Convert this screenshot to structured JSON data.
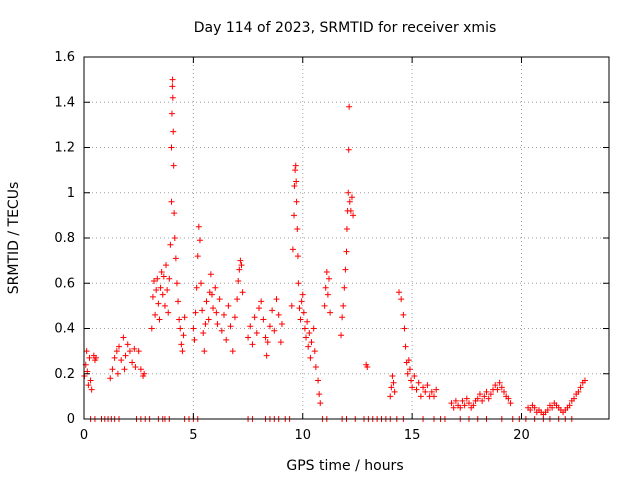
{
  "chart_data": {
    "type": "scatter",
    "title": "Day 114 of 2023, SRMTID for receiver xmis",
    "xlabel": "GPS time / hours",
    "ylabel": "SRMTID / TECUs",
    "xlim": [
      0,
      24
    ],
    "ylim": [
      0,
      1.6
    ],
    "xticks": [
      0,
      5,
      10,
      15,
      20
    ],
    "xtick_labels": [
      "0",
      "5",
      "10",
      "15",
      "20"
    ],
    "yticks": [
      0,
      0.2,
      0.4,
      0.6,
      0.8,
      1.0,
      1.2,
      1.4,
      1.6
    ],
    "ytick_labels": [
      "0",
      "0.2",
      "0.4",
      "0.6",
      "0.8",
      "1",
      "1.2",
      "1.4",
      "1.6"
    ],
    "grid": true,
    "marker": "+",
    "color": "#ff0000",
    "series": [
      {
        "name": "SRMTID",
        "points": [
          [
            0.02,
            0.19
          ],
          [
            0.08,
            0.24
          ],
          [
            0.12,
            0.3
          ],
          [
            0.15,
            0.21
          ],
          [
            0.2,
            0.15
          ],
          [
            0.25,
            0.27
          ],
          [
            0.3,
            0.17
          ],
          [
            0.35,
            0.13
          ],
          [
            0.45,
            0.28
          ],
          [
            0.5,
            0.26
          ],
          [
            0.55,
            0.27
          ],
          [
            1.2,
            0.18
          ],
          [
            1.3,
            0.22
          ],
          [
            1.4,
            0.27
          ],
          [
            1.5,
            0.3
          ],
          [
            1.55,
            0.2
          ],
          [
            1.6,
            0.32
          ],
          [
            1.7,
            0.26
          ],
          [
            1.8,
            0.36
          ],
          [
            1.85,
            0.22
          ],
          [
            1.9,
            0.28
          ],
          [
            2.0,
            0.33
          ],
          [
            2.1,
            0.3
          ],
          [
            2.2,
            0.25
          ],
          [
            2.3,
            0.31
          ],
          [
            2.35,
            0.23
          ],
          [
            2.5,
            0.3
          ],
          [
            2.6,
            0.22
          ],
          [
            2.7,
            0.19
          ],
          [
            2.75,
            0.2
          ],
          [
            3.1,
            0.4
          ],
          [
            3.15,
            0.54
          ],
          [
            3.2,
            0.61
          ],
          [
            3.25,
            0.46
          ],
          [
            3.3,
            0.57
          ],
          [
            3.35,
            0.62
          ],
          [
            3.4,
            0.51
          ],
          [
            3.45,
            0.44
          ],
          [
            3.5,
            0.58
          ],
          [
            3.55,
            0.65
          ],
          [
            3.6,
            0.55
          ],
          [
            3.65,
            0.63
          ],
          [
            3.7,
            0.5
          ],
          [
            3.75,
            0.68
          ],
          [
            3.8,
            0.57
          ],
          [
            3.85,
            0.47
          ],
          [
            3.9,
            0.62
          ],
          [
            3.95,
            0.77
          ],
          [
            4.0,
            0.96
          ],
          [
            4.0,
            1.2
          ],
          [
            4.02,
            1.35
          ],
          [
            4.04,
            1.47
          ],
          [
            4.05,
            1.5
          ],
          [
            4.06,
            1.42
          ],
          [
            4.08,
            1.27
          ],
          [
            4.1,
            1.12
          ],
          [
            4.12,
            0.91
          ],
          [
            4.15,
            0.8
          ],
          [
            4.2,
            0.71
          ],
          [
            4.25,
            0.6
          ],
          [
            4.3,
            0.52
          ],
          [
            4.35,
            0.44
          ],
          [
            4.4,
            0.4
          ],
          [
            4.45,
            0.33
          ],
          [
            4.5,
            0.3
          ],
          [
            4.55,
            0.37
          ],
          [
            4.6,
            0.45
          ],
          [
            5.0,
            0.4
          ],
          [
            5.05,
            0.35
          ],
          [
            5.1,
            0.47
          ],
          [
            5.15,
            0.58
          ],
          [
            5.2,
            0.72
          ],
          [
            5.25,
            0.85
          ],
          [
            5.3,
            0.79
          ],
          [
            5.35,
            0.6
          ],
          [
            5.4,
            0.48
          ],
          [
            5.45,
            0.38
          ],
          [
            5.5,
            0.3
          ],
          [
            5.55,
            0.42
          ],
          [
            5.6,
            0.52
          ],
          [
            5.7,
            0.44
          ],
          [
            5.75,
            0.56
          ],
          [
            5.8,
            0.64
          ],
          [
            5.85,
            0.55
          ],
          [
            5.9,
            0.49
          ],
          [
            6.0,
            0.58
          ],
          [
            6.05,
            0.47
          ],
          [
            6.1,
            0.42
          ],
          [
            6.2,
            0.53
          ],
          [
            6.3,
            0.39
          ],
          [
            6.4,
            0.46
          ],
          [
            6.5,
            0.35
          ],
          [
            6.6,
            0.5
          ],
          [
            6.7,
            0.41
          ],
          [
            6.8,
            0.3
          ],
          [
            6.9,
            0.45
          ],
          [
            7.0,
            0.53
          ],
          [
            7.05,
            0.61
          ],
          [
            7.1,
            0.66
          ],
          [
            7.15,
            0.7
          ],
          [
            7.2,
            0.68
          ],
          [
            7.25,
            0.56
          ],
          [
            7.5,
            0.36
          ],
          [
            7.6,
            0.41
          ],
          [
            7.7,
            0.33
          ],
          [
            7.8,
            0.45
          ],
          [
            7.9,
            0.38
          ],
          [
            8.0,
            0.49
          ],
          [
            8.1,
            0.52
          ],
          [
            8.2,
            0.44
          ],
          [
            8.3,
            0.36
          ],
          [
            8.35,
            0.28
          ],
          [
            8.4,
            0.34
          ],
          [
            8.5,
            0.41
          ],
          [
            8.6,
            0.48
          ],
          [
            8.7,
            0.39
          ],
          [
            8.8,
            0.53
          ],
          [
            8.9,
            0.46
          ],
          [
            9.0,
            0.34
          ],
          [
            9.05,
            0.42
          ],
          [
            9.5,
            0.5
          ],
          [
            9.55,
            0.75
          ],
          [
            9.6,
            0.9
          ],
          [
            9.62,
            1.03
          ],
          [
            9.65,
            1.1
          ],
          [
            9.68,
            1.12
          ],
          [
            9.7,
            1.05
          ],
          [
            9.72,
            0.96
          ],
          [
            9.75,
            0.84
          ],
          [
            9.78,
            0.72
          ],
          [
            9.8,
            0.6
          ],
          [
            9.85,
            0.49
          ],
          [
            9.9,
            0.44
          ],
          [
            9.95,
            0.52
          ],
          [
            10.0,
            0.55
          ],
          [
            10.05,
            0.47
          ],
          [
            10.1,
            0.4
          ],
          [
            10.15,
            0.36
          ],
          [
            10.2,
            0.43
          ],
          [
            10.25,
            0.32
          ],
          [
            10.3,
            0.38
          ],
          [
            10.35,
            0.27
          ],
          [
            10.4,
            0.34
          ],
          [
            10.5,
            0.4
          ],
          [
            10.55,
            0.3
          ],
          [
            10.6,
            0.23
          ],
          [
            10.7,
            0.17
          ],
          [
            10.75,
            0.11
          ],
          [
            10.8,
            0.07
          ],
          [
            11.0,
            0.5
          ],
          [
            11.05,
            0.58
          ],
          [
            11.1,
            0.65
          ],
          [
            11.15,
            0.55
          ],
          [
            11.2,
            0.62
          ],
          [
            11.25,
            0.47
          ],
          [
            11.75,
            0.37
          ],
          [
            11.8,
            0.45
          ],
          [
            11.85,
            0.5
          ],
          [
            11.9,
            0.58
          ],
          [
            11.95,
            0.66
          ],
          [
            12.0,
            0.74
          ],
          [
            12.02,
            0.84
          ],
          [
            12.05,
            0.92
          ],
          [
            12.08,
            1.0
          ],
          [
            12.1,
            1.19
          ],
          [
            12.12,
            1.38
          ],
          [
            12.15,
            0.96
          ],
          [
            12.2,
            0.92
          ],
          [
            12.25,
            0.98
          ],
          [
            12.3,
            0.9
          ],
          [
            12.9,
            0.24
          ],
          [
            12.95,
            0.23
          ],
          [
            14.0,
            0.1
          ],
          [
            14.05,
            0.14
          ],
          [
            14.1,
            0.19
          ],
          [
            14.15,
            0.16
          ],
          [
            14.2,
            0.12
          ],
          [
            14.4,
            0.56
          ],
          [
            14.5,
            0.53
          ],
          [
            14.6,
            0.46
          ],
          [
            14.65,
            0.4
          ],
          [
            14.7,
            0.32
          ],
          [
            14.75,
            0.25
          ],
          [
            14.8,
            0.2
          ],
          [
            14.85,
            0.26
          ],
          [
            14.9,
            0.22
          ],
          [
            14.95,
            0.17
          ],
          [
            15.0,
            0.14
          ],
          [
            15.1,
            0.19
          ],
          [
            15.2,
            0.13
          ],
          [
            15.3,
            0.16
          ],
          [
            15.4,
            0.1
          ],
          [
            15.5,
            0.14
          ],
          [
            15.6,
            0.12
          ],
          [
            15.7,
            0.15
          ],
          [
            15.8,
            0.1
          ],
          [
            15.9,
            0.12
          ],
          [
            16.0,
            0.1
          ],
          [
            16.1,
            0.13
          ],
          [
            16.8,
            0.07
          ],
          [
            16.9,
            0.05
          ],
          [
            17.0,
            0.08
          ],
          [
            17.1,
            0.06
          ],
          [
            17.2,
            0.05
          ],
          [
            17.3,
            0.08
          ],
          [
            17.4,
            0.06
          ],
          [
            17.5,
            0.09
          ],
          [
            17.6,
            0.07
          ],
          [
            17.7,
            0.05
          ],
          [
            17.8,
            0.06
          ],
          [
            17.9,
            0.08
          ],
          [
            18.0,
            0.09
          ],
          [
            18.1,
            0.11
          ],
          [
            18.2,
            0.08
          ],
          [
            18.3,
            0.1
          ],
          [
            18.4,
            0.12
          ],
          [
            18.5,
            0.09
          ],
          [
            18.6,
            0.11
          ],
          [
            18.7,
            0.13
          ],
          [
            18.8,
            0.15
          ],
          [
            18.9,
            0.13
          ],
          [
            19.0,
            0.16
          ],
          [
            19.1,
            0.14
          ],
          [
            19.2,
            0.12
          ],
          [
            19.3,
            0.1
          ],
          [
            19.4,
            0.09
          ],
          [
            19.5,
            0.07
          ],
          [
            20.3,
            0.05
          ],
          [
            20.4,
            0.04
          ],
          [
            20.5,
            0.06
          ],
          [
            20.6,
            0.05
          ],
          [
            20.7,
            0.03
          ],
          [
            20.8,
            0.04
          ],
          [
            20.9,
            0.03
          ],
          [
            21.0,
            0.02
          ],
          [
            21.1,
            0.03
          ],
          [
            21.2,
            0.04
          ],
          [
            21.3,
            0.06
          ],
          [
            21.4,
            0.05
          ],
          [
            21.5,
            0.07
          ],
          [
            21.6,
            0.06
          ],
          [
            21.7,
            0.05
          ],
          [
            21.8,
            0.04
          ],
          [
            21.9,
            0.03
          ],
          [
            22.0,
            0.04
          ],
          [
            22.1,
            0.05
          ],
          [
            22.2,
            0.06
          ],
          [
            22.3,
            0.08
          ],
          [
            22.4,
            0.09
          ],
          [
            22.5,
            0.11
          ],
          [
            22.6,
            0.12
          ],
          [
            22.7,
            0.14
          ],
          [
            22.8,
            0.16
          ],
          [
            22.9,
            0.17
          ],
          [
            0.3,
            0.0
          ],
          [
            0.5,
            0.0
          ],
          [
            0.8,
            0.0
          ],
          [
            0.95,
            0.0
          ],
          [
            1.1,
            0.0
          ],
          [
            1.25,
            0.0
          ],
          [
            1.4,
            0.0
          ],
          [
            1.6,
            0.0
          ],
          [
            2.4,
            0.0
          ],
          [
            2.6,
            0.0
          ],
          [
            2.8,
            0.0
          ],
          [
            3.0,
            0.0
          ],
          [
            3.4,
            0.0
          ],
          [
            3.6,
            0.0
          ],
          [
            3.7,
            0.0
          ],
          [
            3.9,
            0.0
          ],
          [
            4.6,
            0.0
          ],
          [
            4.8,
            0.0
          ],
          [
            5.0,
            0.0
          ],
          [
            5.2,
            0.0
          ],
          [
            7.5,
            0.0
          ],
          [
            7.7,
            0.0
          ],
          [
            8.3,
            0.0
          ],
          [
            8.5,
            0.0
          ],
          [
            8.7,
            0.0
          ],
          [
            8.9,
            0.0
          ],
          [
            9.2,
            0.0
          ],
          [
            9.4,
            0.0
          ],
          [
            10.9,
            0.0
          ],
          [
            11.1,
            0.0
          ],
          [
            11.8,
            0.0
          ],
          [
            12.0,
            0.0
          ],
          [
            12.4,
            0.0
          ],
          [
            12.8,
            0.0
          ],
          [
            13.0,
            0.0
          ],
          [
            13.2,
            0.0
          ],
          [
            13.4,
            0.0
          ],
          [
            13.6,
            0.0
          ],
          [
            13.8,
            0.0
          ],
          [
            14.0,
            0.0
          ],
          [
            14.3,
            0.0
          ],
          [
            14.6,
            0.0
          ],
          [
            15.5,
            0.0
          ],
          [
            16.0,
            0.0
          ],
          [
            16.3,
            0.0
          ],
          [
            16.5,
            0.0
          ],
          [
            17.2,
            0.0
          ],
          [
            17.6,
            0.0
          ],
          [
            18.0,
            0.0
          ],
          [
            18.4,
            0.0
          ],
          [
            19.1,
            0.0
          ],
          [
            19.6,
            0.0
          ],
          [
            19.9,
            0.0
          ],
          [
            20.2,
            0.0
          ],
          [
            20.6,
            0.0
          ],
          [
            21.0,
            0.0
          ],
          [
            21.3,
            0.0
          ],
          [
            21.7,
            0.0
          ],
          [
            22.0,
            0.0
          ],
          [
            22.3,
            0.0
          ]
        ]
      }
    ]
  }
}
